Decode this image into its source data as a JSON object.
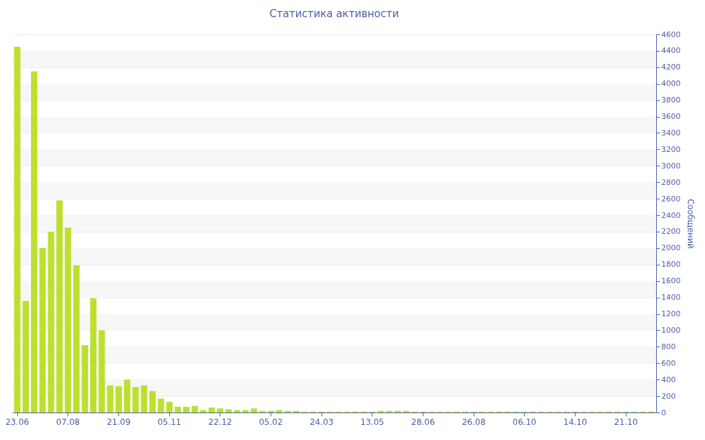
{
  "chart_data": {
    "type": "bar",
    "title": "Статистика активности",
    "ylabel": "Сообщений",
    "categories": [
      "23.06",
      null,
      null,
      null,
      null,
      null,
      "07.08",
      null,
      null,
      null,
      null,
      null,
      "21.09",
      null,
      null,
      null,
      null,
      null,
      "05.11",
      null,
      null,
      null,
      null,
      null,
      "22.12",
      null,
      null,
      null,
      null,
      null,
      "05.02",
      null,
      null,
      null,
      null,
      null,
      "24.03",
      null,
      null,
      null,
      null,
      null,
      "13.05",
      null,
      null,
      null,
      null,
      null,
      "28.06",
      null,
      null,
      null,
      null,
      null,
      "26.08",
      null,
      null,
      null,
      null,
      null,
      "06.10",
      null,
      null,
      null,
      null,
      null,
      "14.10",
      null,
      null,
      null,
      null,
      null,
      "21.10",
      null,
      null,
      null
    ],
    "values": [
      4450,
      1360,
      4150,
      2000,
      2200,
      2580,
      2250,
      1790,
      820,
      1390,
      1000,
      330,
      320,
      400,
      310,
      330,
      260,
      170,
      130,
      70,
      70,
      80,
      30,
      60,
      50,
      40,
      30,
      30,
      50,
      20,
      20,
      30,
      20,
      20,
      10,
      10,
      10,
      10,
      10,
      10,
      10,
      10,
      10,
      20,
      20,
      20,
      20,
      10,
      10,
      10,
      10,
      10,
      10,
      10,
      10,
      10,
      10,
      10,
      10,
      10,
      10,
      10,
      10,
      10,
      10,
      10,
      10,
      10,
      10,
      10,
      10,
      10,
      10,
      10,
      10,
      10
    ],
    "color": "#bde030",
    "ylim": [
      0,
      4600
    ],
    "yticks": [
      0,
      200,
      400,
      600,
      800,
      1000,
      1200,
      1400,
      1600,
      1800,
      2000,
      2200,
      2400,
      2600,
      2800,
      3000,
      3200,
      3400,
      3600,
      3800,
      4000,
      4200,
      4400,
      4600
    ],
    "grid": "y"
  }
}
